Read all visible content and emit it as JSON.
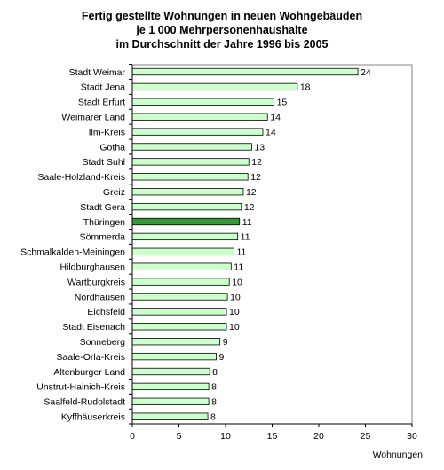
{
  "chart_data": {
    "type": "bar",
    "orientation": "horizontal",
    "title_lines": [
      "Fertig gestellte Wohnungen in neuen Wohngebäuden",
      "je  1 000 Mehrpersonenhaushalte",
      "im Durchschnitt der Jahre 1996 bis 2005"
    ],
    "categories": [
      "Stadt Weimar",
      "Stadt Jena",
      "Stadt Erfurt",
      "Weimarer Land",
      "Ilm-Kreis",
      "Gotha",
      "Stadt Suhl",
      "Saale-Holzland-Kreis",
      "Greiz",
      "Stadt Gera",
      "Thüringen",
      "Sömmerda",
      "Schmalkalden-Meiningen",
      "Hildburghausen",
      "Wartburgkreis",
      "Nordhausen",
      "Eichsfeld",
      "Stadt Eisenach",
      "Sonneberg",
      "Saale-Orla-Kreis",
      "Altenburger Land",
      "Unstrut-Hainich-Kreis",
      "Saalfeld-Rudolstadt",
      "Kyffhäuserkreis"
    ],
    "values": [
      24.2,
      17.7,
      15.2,
      14.5,
      14.0,
      12.8,
      12.5,
      12.4,
      11.9,
      11.7,
      11.5,
      11.3,
      10.9,
      10.6,
      10.4,
      10.2,
      10.1,
      10.1,
      9.4,
      9.0,
      8.3,
      8.2,
      8.2,
      8.1
    ],
    "value_labels": [
      "24",
      "18",
      "15",
      "14",
      "14",
      "13",
      "12",
      "12",
      "12",
      "12",
      "11",
      "11",
      "11",
      "11",
      "10",
      "10",
      "10",
      "10",
      "9",
      "9",
      "8",
      "8",
      "8",
      "8"
    ],
    "highlight_category": "Thüringen",
    "xlabel": "Wohnungen",
    "xlim": [
      0,
      30
    ],
    "xticks": [
      0,
      5,
      10,
      15,
      20,
      25,
      30
    ],
    "grid": false,
    "colors": {
      "bar_fill": "#ccffcc",
      "highlight_fill": "#339933",
      "bar_stroke": "#000000",
      "frame": "#808080",
      "axis": "#000000"
    }
  }
}
